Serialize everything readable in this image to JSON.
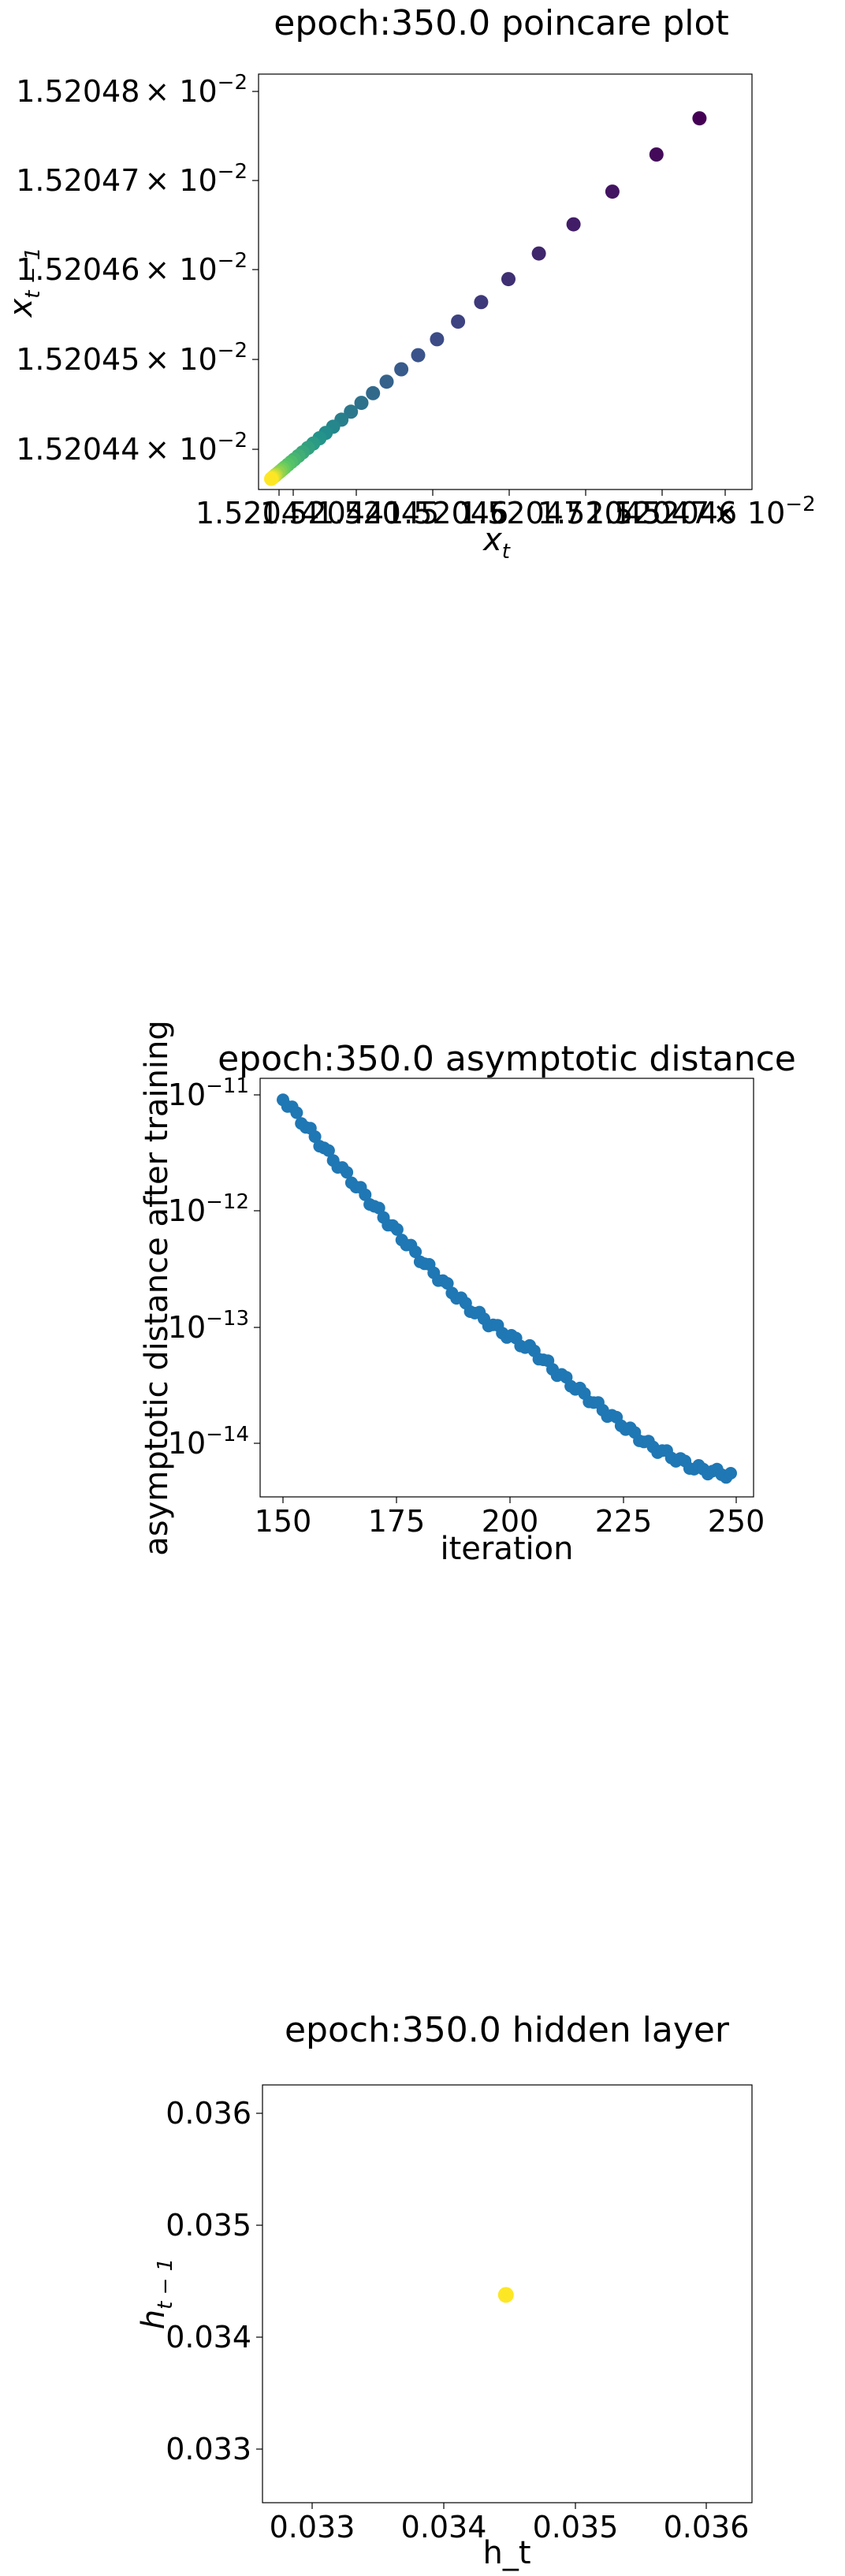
{
  "chart_data": [
    {
      "type": "scatter",
      "title": "epoch:350.0 poincare plot",
      "xlabel": "x",
      "xlabel_sub": "t",
      "ylabel": "x",
      "ylabel_sub": "t − 1",
      "x_tick_labels": [
        "1.52044",
        "1.52045",
        "1.52046",
        "1.52047"
      ],
      "y_ticks": [
        {
          "mantissa": "1.52048",
          "value": 0.0152048
        },
        {
          "mantissa": "1.52047",
          "value": 0.0152047
        },
        {
          "mantissa": "1.52046",
          "value": 0.0152046
        },
        {
          "mantissa": "1.52045",
          "value": 0.0152045
        },
        {
          "mantissa": "1.52044",
          "value": 0.0152044
        }
      ],
      "tick_times": "× 10",
      "tick_exp": "−2",
      "x_offset_mantissa": "1.52044",
      "colormap": [
        "#440154",
        "#3b528b",
        "#21918c",
        "#5ec962",
        "#fde725"
      ],
      "xlim": [
        0.01520437,
        0.01520484
      ],
      "ylim": [
        0.01520437,
        0.01520484
      ],
      "x": [
        0.01520479,
        0.015204749,
        0.015204707,
        0.01520467,
        0.015204637,
        0.015204608,
        0.015204582,
        0.01520456,
        0.01520454,
        0.015204522,
        0.015204506,
        0.015204492,
        0.015204479,
        0.015204468,
        0.015204458,
        0.015204449,
        0.015204441,
        0.015204434,
        0.015204428,
        0.015204422,
        0.015204417,
        0.015204412,
        0.015204408,
        0.015204404,
        0.015204401,
        0.015204398,
        0.015204395,
        0.015204393,
        0.015204391,
        0.015204389,
        0.015204387,
        0.015204386,
        0.015204385,
        0.015204384,
        0.015204383,
        0.015204382
      ],
      "y": [
        0.01520479,
        0.015204749,
        0.015204707,
        0.01520467,
        0.015204637,
        0.015204608,
        0.015204582,
        0.01520456,
        0.01520454,
        0.015204522,
        0.015204506,
        0.015204492,
        0.015204479,
        0.015204468,
        0.015204458,
        0.015204449,
        0.015204441,
        0.015204434,
        0.015204428,
        0.015204422,
        0.015204417,
        0.015204412,
        0.015204408,
        0.015204404,
        0.015204401,
        0.015204398,
        0.015204395,
        0.015204393,
        0.015204391,
        0.015204389,
        0.015204387,
        0.015204386,
        0.015204385,
        0.015204384,
        0.015204383,
        0.015204382
      ]
    },
    {
      "type": "scatter",
      "title": "epoch:350.0 asymptotic distance",
      "xlabel": "iteration",
      "ylabel": "asymptotic distance after training",
      "yscale": "log",
      "color": "#1f77b4",
      "xlim": [
        145,
        253
      ],
      "ylim_exp": [
        -14.45,
        -10.85
      ],
      "x_ticks": [
        150,
        175,
        200,
        225,
        250
      ],
      "y_ticks": [
        {
          "base": "10",
          "exp": "−11",
          "value": -11
        },
        {
          "base": "10",
          "exp": "−12",
          "value": -12
        },
        {
          "base": "10",
          "exp": "−13",
          "value": -13
        },
        {
          "base": "10",
          "exp": "−14",
          "value": -14
        }
      ],
      "log10_segments": [
        [
          150,
          -11.02
        ],
        [
          160,
          -11.5
        ],
        [
          170,
          -11.95
        ],
        [
          180,
          -12.4
        ],
        [
          190,
          -12.8
        ],
        [
          195,
          -12.95
        ],
        [
          200,
          -13.08
        ],
        [
          205,
          -13.2
        ],
        [
          210,
          -13.38
        ],
        [
          220,
          -13.7
        ],
        [
          230,
          -14.0
        ],
        [
          240,
          -14.2
        ],
        [
          250,
          -14.28
        ]
      ]
    },
    {
      "type": "scatter",
      "title": "epoch:350.0 hidden layer",
      "xlabel": "h_t",
      "ylabel": "h",
      "ylabel_sub": "t − 1",
      "color": "#fde725",
      "xlim": [
        0.03252,
        0.03624
      ],
      "ylim": [
        0.03252,
        0.03624
      ],
      "x_ticks": [
        "0.033",
        "0.034",
        "0.035",
        "0.036"
      ],
      "y_ticks": [
        "0.036",
        "0.035",
        "0.034",
        "0.033"
      ],
      "x": [
        0.03437
      ],
      "y": [
        0.03437
      ]
    }
  ]
}
